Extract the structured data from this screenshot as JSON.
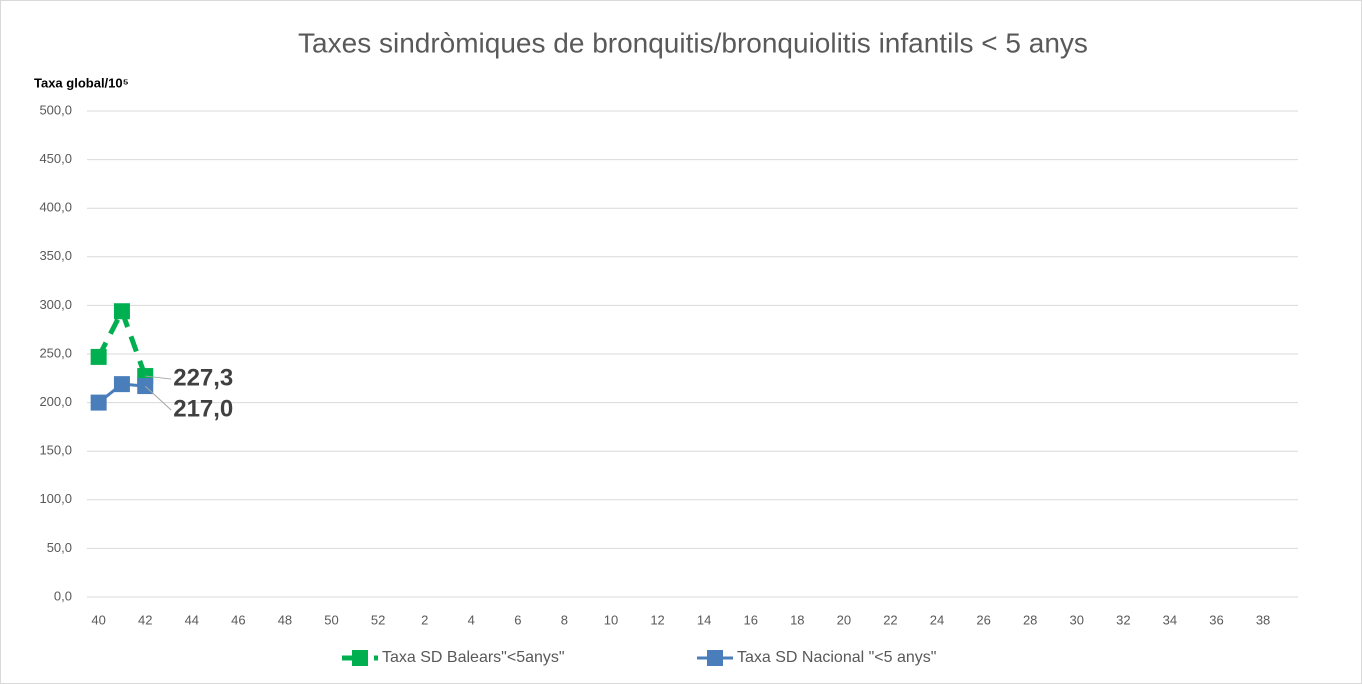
{
  "chart_data": {
    "type": "line",
    "title": "Taxes sindròmiques de bronquitis/bronquiolitis infantils < 5 anys",
    "y_label": "Taxa global/10⁵",
    "categories": [
      "40",
      null,
      "42",
      null,
      "44",
      null,
      "46",
      null,
      "48",
      null,
      "50",
      null,
      "52",
      null,
      "2",
      null,
      "4",
      null,
      "6",
      null,
      "8",
      null,
      "10",
      null,
      "12",
      null,
      "14",
      null,
      "16",
      null,
      "18",
      null,
      "20",
      null,
      "22",
      null,
      "24",
      null,
      "26",
      null,
      "28",
      null,
      "30",
      null,
      "32",
      null,
      "34",
      null,
      "36",
      null,
      "38",
      null
    ],
    "series": [
      {
        "name": "Taxa SD Balears\"<5anys\"",
        "color": "#00b050",
        "dashed": true,
        "values": [
          247,
          294,
          227.3,
          null,
          null,
          null,
          null,
          null,
          null,
          null,
          null,
          null,
          null,
          null,
          null,
          null,
          null,
          null,
          null,
          null,
          null,
          null,
          null,
          null,
          null,
          null,
          null,
          null,
          null,
          null,
          null,
          null,
          null,
          null,
          null,
          null,
          null,
          null,
          null,
          null,
          null,
          null,
          null,
          null,
          null,
          null,
          null,
          null,
          null,
          null,
          null,
          null
        ],
        "value_labels": [
          null,
          null,
          "227,3",
          null,
          null,
          null,
          null,
          null,
          null,
          null,
          null,
          null,
          null,
          null,
          null,
          null,
          null,
          null,
          null,
          null,
          null,
          null,
          null,
          null,
          null,
          null,
          null,
          null,
          null,
          null,
          null,
          null,
          null,
          null,
          null,
          null,
          null,
          null,
          null,
          null,
          null,
          null,
          null,
          null,
          null,
          null,
          null,
          null,
          null,
          null,
          null,
          null
        ]
      },
      {
        "name": "Taxa SD Nacional \"<5 anys\"",
        "color": "#4a7ebb",
        "dashed": false,
        "values": [
          200,
          219,
          217.0,
          null,
          null,
          null,
          null,
          null,
          null,
          null,
          null,
          null,
          null,
          null,
          null,
          null,
          null,
          null,
          null,
          null,
          null,
          null,
          null,
          null,
          null,
          null,
          null,
          null,
          null,
          null,
          null,
          null,
          null,
          null,
          null,
          null,
          null,
          null,
          null,
          null,
          null,
          null,
          null,
          null,
          null,
          null,
          null,
          null,
          null,
          null,
          null,
          null
        ],
        "value_labels": [
          null,
          null,
          "217,0",
          null,
          null,
          null,
          null,
          null,
          null,
          null,
          null,
          null,
          null,
          null,
          null,
          null,
          null,
          null,
          null,
          null,
          null,
          null,
          null,
          null,
          null,
          null,
          null,
          null,
          null,
          null,
          null,
          null,
          null,
          null,
          null,
          null,
          null,
          null,
          null,
          null,
          null,
          null,
          null,
          null,
          null,
          null,
          null,
          null,
          null,
          null,
          null,
          null
        ]
      }
    ],
    "ylim": [
      0,
      500
    ],
    "yticks": [
      {
        "value": 0,
        "label": "0,0"
      },
      {
        "value": 50,
        "label": "50,0"
      },
      {
        "value": 100,
        "label": "100,0"
      },
      {
        "value": 150,
        "label": "150,0"
      },
      {
        "value": 200,
        "label": "200,0"
      },
      {
        "value": 250,
        "label": "250,0"
      },
      {
        "value": 300,
        "label": "300,0"
      },
      {
        "value": 350,
        "label": "350,0"
      },
      {
        "value": 400,
        "label": "400,0"
      },
      {
        "value": 450,
        "label": "450,0"
      },
      {
        "value": 500,
        "label": "500,0"
      }
    ],
    "grid": true,
    "legend": "bottom"
  }
}
